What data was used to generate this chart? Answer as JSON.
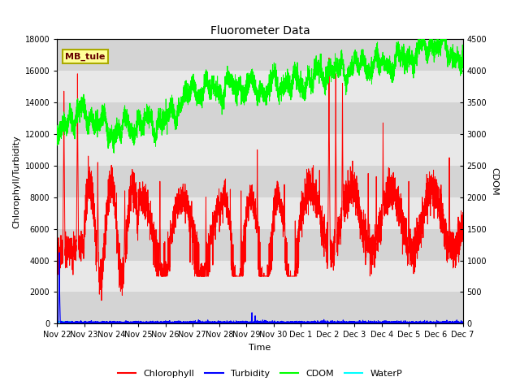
{
  "title": "Fluorometer Data",
  "xlabel": "Time",
  "ylabel_left": "Chlorophyll/Turbidity",
  "ylabel_right": "CDOM",
  "ylim_left": [
    0,
    18000
  ],
  "ylim_right": [
    0,
    4500
  ],
  "yticks_left": [
    0,
    2000,
    4000,
    6000,
    8000,
    10000,
    12000,
    14000,
    16000,
    18000
  ],
  "yticks_right": [
    0,
    500,
    1000,
    1500,
    2000,
    2500,
    3000,
    3500,
    4000,
    4500
  ],
  "annotation_text": "MB_tule",
  "annotation_box_facecolor": "#FFFF99",
  "annotation_box_edgecolor": "#AAAA00",
  "chlorophyll_color": "#FF0000",
  "turbidity_color": "#0000FF",
  "cdom_color": "#00FF00",
  "waterp_color": "#00FFFF",
  "bg_color": "#E0E0E0",
  "bg_band_color": "#CCCCCC",
  "xtick_labels": [
    "Nov 22",
    "Nov 23",
    "Nov 24",
    "Nov 25",
    "Nov 26",
    "Nov 27",
    "Nov 28",
    "Nov 29",
    "Nov 30",
    "Dec 1",
    "Dec 2",
    "Dec 3",
    "Dec 4",
    "Dec 5",
    "Dec 6",
    "Dec 7"
  ],
  "n_points": 5000,
  "title_fontsize": 10,
  "label_fontsize": 8,
  "tick_fontsize": 7,
  "legend_fontsize": 8
}
